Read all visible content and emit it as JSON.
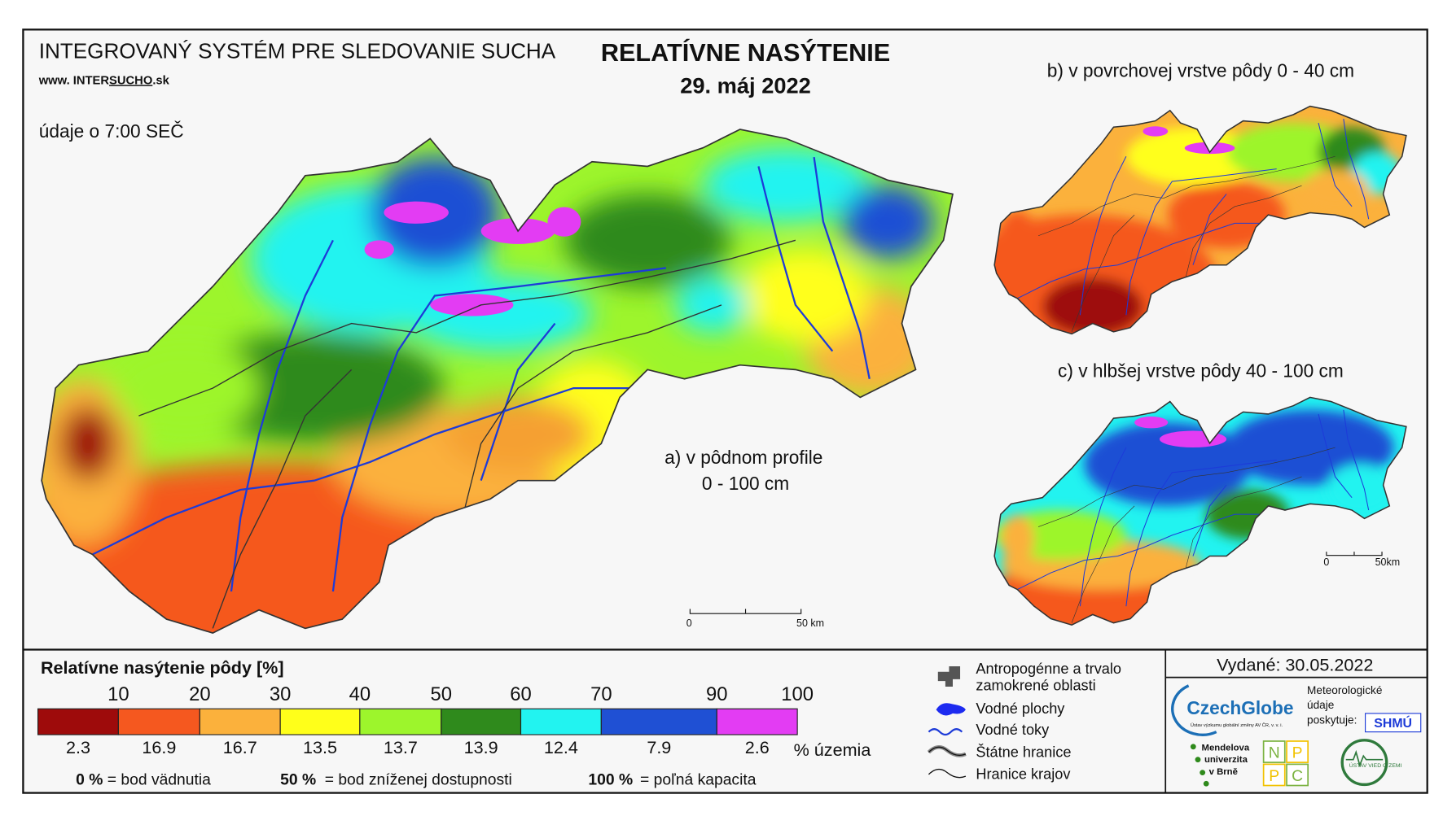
{
  "header": {
    "system": "INTEGROVANÝ SYSTÉM PRE SLEDOVANIE SUCHA",
    "web_prefix": "www. INTER",
    "web_brand": "SUCHO",
    "web_suffix": ".sk",
    "time_note": "údaje o 7:00 SEČ",
    "title": "RELATÍVNE NASÝTENIE",
    "date": "29. máj 2022"
  },
  "maps": {
    "a_line1": "a) v pôdnom profile",
    "a_line2": "0 - 100 cm",
    "b": "b) v povrchovej vrstve pôdy 0 - 40 cm",
    "c": "c) v hlbšej vrstve pôdy 40 - 100 cm",
    "scale_zero": "0",
    "scale_main": "50 km",
    "scale_small": "50km"
  },
  "legend": {
    "title": "Relatívne nasýtenie pôdy [%]",
    "bounds": [
      10,
      20,
      30,
      40,
      50,
      60,
      70,
      90,
      100
    ],
    "classes": [
      {
        "color": "#9e0b0b",
        "share": 2.3
      },
      {
        "color": "#f5581f",
        "share": 16.9
      },
      {
        "color": "#fbb13c",
        "share": 16.7
      },
      {
        "color": "#ffff1a",
        "share": 13.5
      },
      {
        "color": "#9df52c",
        "share": 13.7
      },
      {
        "color": "#2f8a1c",
        "share": 13.9
      },
      {
        "color": "#22f3f0",
        "share": 12.4
      },
      {
        "color": "#1f50d4",
        "share": 7.9
      },
      {
        "color": "#e33cf3",
        "share": 2.6
      }
    ],
    "share_unit": "% územia",
    "notes": [
      {
        "key": "0 %",
        "text": "= bod vädnutia"
      },
      {
        "key": "50 %",
        "text": "= bod zníženej dostupnosti"
      },
      {
        "key": "100 %",
        "text": "= poľná kapacita"
      }
    ]
  },
  "symbols": {
    "anthropogenic_1": "Antropogénne a trvalo",
    "anthropogenic_2": "zamokrené oblasti",
    "water_bodies": "Vodné plochy",
    "rivers": "Vodné toky",
    "state_borders": "Štátne hranice",
    "region_borders": "Hranice krajov"
  },
  "issued": "Vydané: 30.05.2022",
  "logos": {
    "czechglobe": "CzechGlobe",
    "czechglobe_sub": "Ústav výzkumu globální změny AV ČR, v. v. i.",
    "meteo_1": "Meteorologické",
    "meteo_2": "údaje",
    "meteo_3": "poskytuje:",
    "shmu": "SHMÚ",
    "mendel_1": "Mendelova",
    "mendel_2": "univerzita",
    "mendel_3": "v Brně",
    "nppc": [
      "N",
      "P",
      "P",
      "C"
    ],
    "uvz": "ÚSTAV VIED O ZEMI"
  }
}
